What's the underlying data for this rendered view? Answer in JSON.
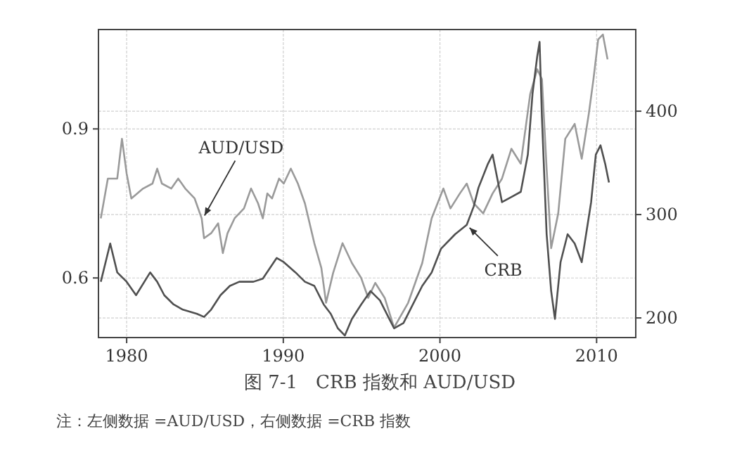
{
  "chart_data": {
    "type": "line",
    "title": "图 7-1　CRB 指数和 AUD/USD",
    "annotations": [
      "注：左侧数据 =AUD/USD，右侧数据 =CRB 指数"
    ],
    "xlim": [
      1978.2,
      2012.5
    ],
    "xticks": [
      1980,
      1990,
      2000,
      2010
    ],
    "ylim": [
      0.48,
      1.1
    ],
    "yticks": [
      0.6,
      0.9
    ],
    "y2lim": [
      181,
      479
    ],
    "y2ticks": [
      200,
      300,
      400
    ],
    "grid": true,
    "series": [
      {
        "name": "AUD/USD",
        "color": "#9a9a9a",
        "x": [
          1978.35,
          1978.8,
          1979.4,
          1979.7,
          1980.0,
          1980.3,
          1981.05,
          1981.65,
          1981.95,
          1982.25,
          1982.85,
          1983.29,
          1983.74,
          1984.34,
          1984.79,
          1984.94,
          1985.39,
          1985.84,
          1986.14,
          1986.44,
          1986.89,
          1987.49,
          1987.94,
          1988.39,
          1988.69,
          1988.98,
          1989.28,
          1989.73,
          1990.03,
          1990.48,
          1990.93,
          1991.38,
          1991.83,
          1991.98,
          1992.43,
          1992.73,
          1993.18,
          1993.78,
          1994.38,
          1994.97,
          1995.42,
          1995.87,
          1996.47,
          1997.07,
          1997.97,
          1998.87,
          1999.47,
          2000.22,
          2000.67,
          2001.27,
          2001.71,
          2002.16,
          2002.76,
          2003.36,
          2003.96,
          2004.56,
          2005.16,
          2005.76,
          2006.21,
          2006.51,
          2006.81,
          2007.1,
          2007.55,
          2008.0,
          2008.6,
          2009.05,
          2009.5,
          2009.8,
          2010.1,
          2010.4,
          2010.7
        ],
        "values": [
          0.72,
          0.8,
          0.8,
          0.88,
          0.81,
          0.76,
          0.78,
          0.79,
          0.82,
          0.79,
          0.78,
          0.8,
          0.78,
          0.76,
          0.72,
          0.68,
          0.69,
          0.71,
          0.65,
          0.69,
          0.72,
          0.74,
          0.78,
          0.75,
          0.72,
          0.77,
          0.76,
          0.8,
          0.79,
          0.82,
          0.79,
          0.75,
          0.69,
          0.67,
          0.62,
          0.55,
          0.61,
          0.67,
          0.63,
          0.6,
          0.56,
          0.59,
          0.56,
          0.5,
          0.55,
          0.63,
          0.72,
          0.78,
          0.74,
          0.77,
          0.79,
          0.75,
          0.73,
          0.77,
          0.8,
          0.86,
          0.83,
          0.97,
          1.02,
          1.0,
          0.82,
          0.66,
          0.73,
          0.88,
          0.91,
          0.84,
          0.93,
          1.0,
          1.08,
          1.09,
          1.04
        ]
      },
      {
        "name": "CRB",
        "color": "#505050",
        "axis": "y2",
        "x": [
          1978.35,
          1978.95,
          1979.4,
          1980.0,
          1980.6,
          1981.5,
          1981.95,
          1982.4,
          1983.0,
          1983.59,
          1984.49,
          1984.94,
          1985.39,
          1985.99,
          1986.59,
          1987.19,
          1988.09,
          1988.69,
          1989.58,
          1990.03,
          1990.78,
          1991.38,
          1991.98,
          1992.58,
          1993.03,
          1993.48,
          1993.93,
          1994.38,
          1994.97,
          1995.57,
          1996.17,
          1996.77,
          1997.07,
          1997.67,
          1998.27,
          1998.87,
          1999.47,
          2000.07,
          2000.97,
          2001.71,
          2002.16,
          2002.46,
          2003.06,
          2003.36,
          2003.96,
          2004.56,
          2005.16,
          2005.61,
          2005.91,
          2006.21,
          2006.36,
          2006.51,
          2006.81,
          2007.1,
          2007.34,
          2007.7,
          2008.15,
          2008.6,
          2009.05,
          2009.65,
          2009.95,
          2010.25,
          2010.55,
          2010.79
        ],
        "values": [
          235,
          272,
          244,
          235,
          222,
          244,
          235,
          222,
          213,
          208,
          204,
          201,
          208,
          222,
          231,
          235,
          235,
          238,
          258,
          254,
          244,
          235,
          231,
          213,
          204,
          190,
          183,
          199,
          213,
          226,
          217,
          199,
          190,
          195,
          213,
          231,
          244,
          267,
          281,
          290,
          308,
          326,
          349,
          358,
          312,
          317,
          322,
          358,
          417,
          453,
          467,
          394,
          281,
          226,
          199,
          254,
          281,
          272,
          254,
          312,
          358,
          367,
          349,
          331
        ]
      }
    ]
  }
}
